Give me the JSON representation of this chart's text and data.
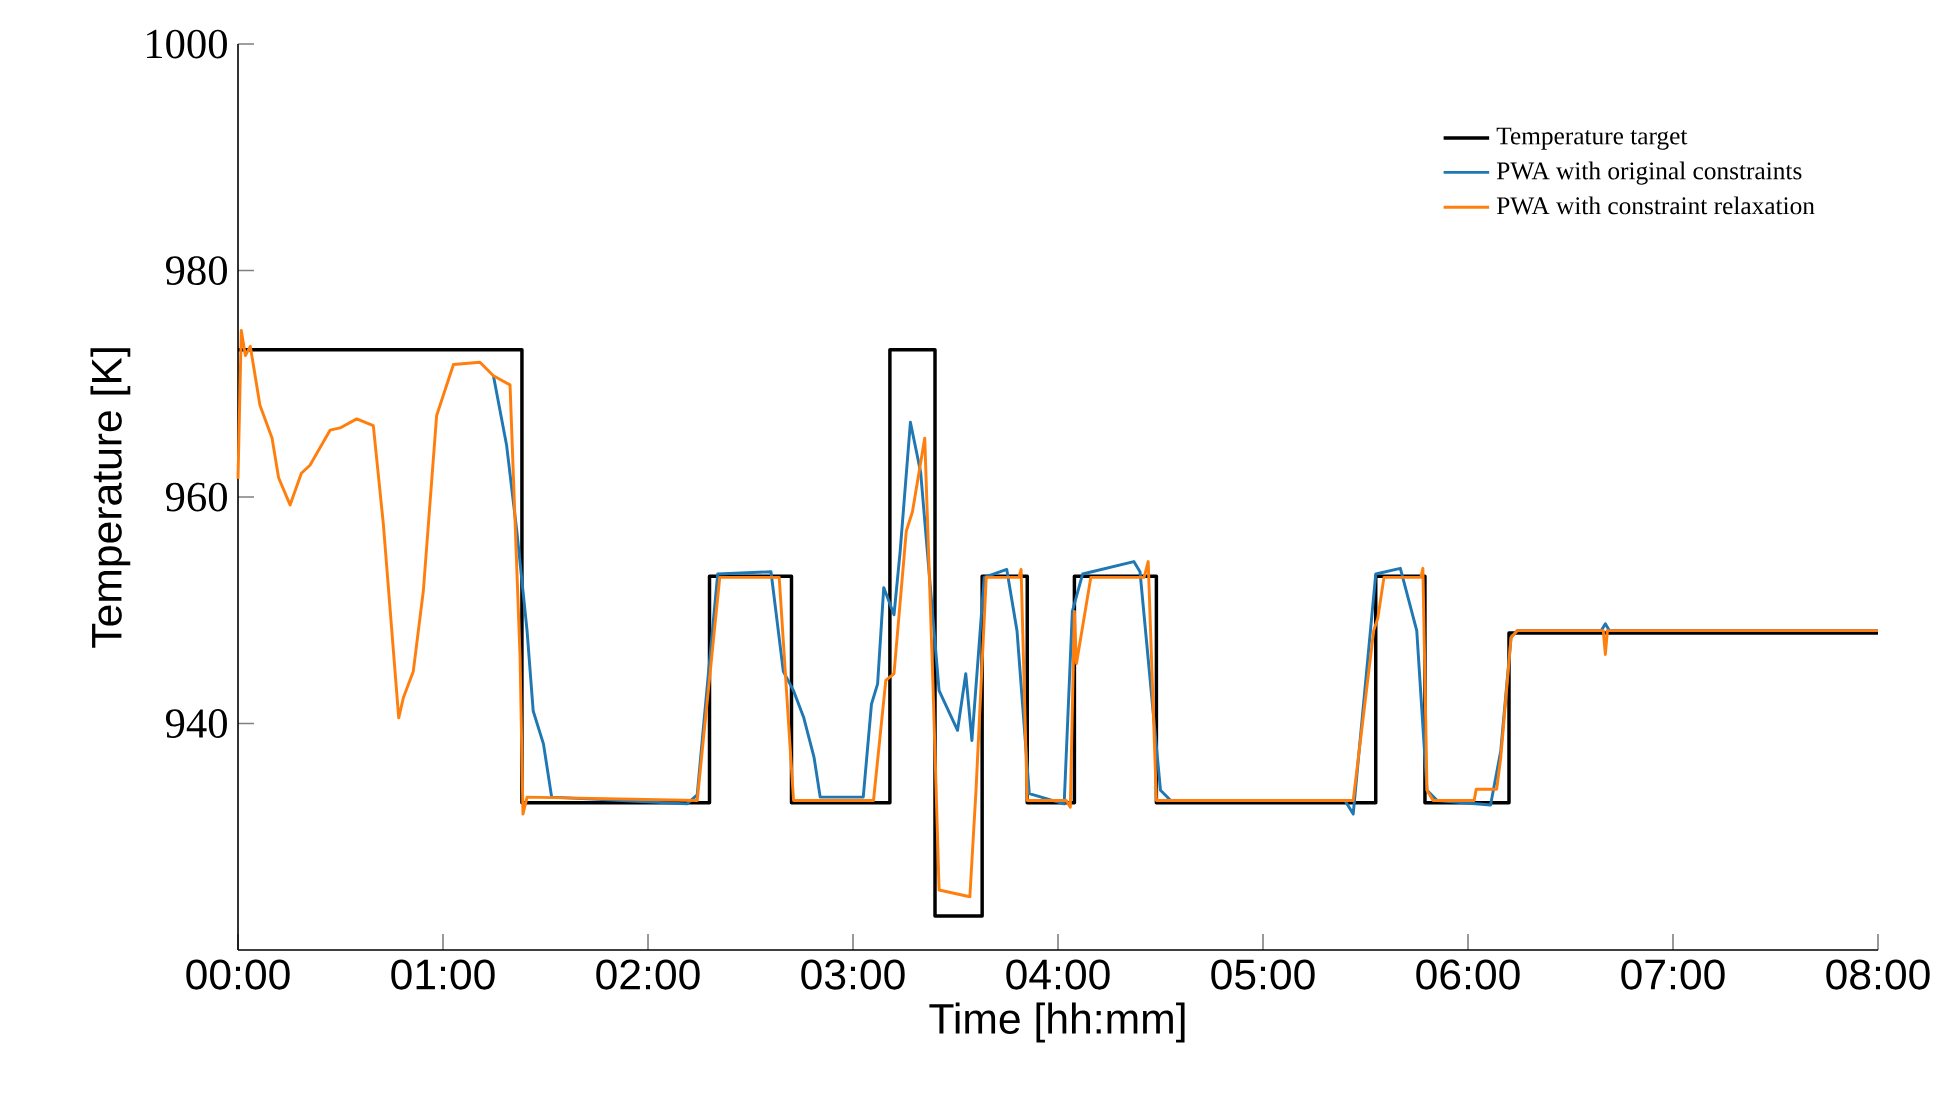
{
  "chart_data": {
    "type": "line",
    "xlabel": "Time [hh:mm]",
    "ylabel": "Temperature [K]",
    "xlim": [
      0,
      8
    ],
    "ylim": [
      920,
      1000
    ],
    "xticks": [
      {
        "value": 0,
        "label": "00:00"
      },
      {
        "value": 1,
        "label": "01:00"
      },
      {
        "value": 2,
        "label": "02:00"
      },
      {
        "value": 3,
        "label": "03:00"
      },
      {
        "value": 4,
        "label": "04:00"
      },
      {
        "value": 5,
        "label": "05:00"
      },
      {
        "value": 6,
        "label": "06:00"
      },
      {
        "value": 7,
        "label": "07:00"
      },
      {
        "value": 8,
        "label": "08:00"
      }
    ],
    "yticks": [
      940,
      960,
      980,
      1000
    ],
    "legend": "top right",
    "grid": false,
    "marker": "none",
    "line_style": "solid",
    "series": [
      {
        "name": "Temperature target",
        "type": "step",
        "color": "#000000",
        "x": [
          0,
          1.385,
          2.3,
          2.7,
          3.18,
          3.4,
          3.63,
          3.85,
          4.08,
          4.48,
          5.55,
          5.79,
          6.2,
          8
        ],
        "values": [
          973,
          933,
          953,
          933,
          973,
          923,
          953,
          933,
          953,
          933,
          953,
          933,
          948,
          948
        ]
      },
      {
        "name": "PWA with original constraints",
        "color": "#1f77b4",
        "x": [
          1.246,
          1.31,
          1.36,
          1.41,
          1.44,
          1.49,
          1.53,
          2.19,
          2.24,
          2.29,
          2.34,
          2.6,
          2.66,
          2.71,
          2.76,
          2.81,
          2.84,
          3.05,
          3.09,
          3.12,
          3.15,
          3.2,
          3.23,
          3.28,
          3.33,
          3.39,
          3.42,
          3.51,
          3.55,
          3.58,
          3.64,
          3.75,
          3.8,
          3.86,
          4.03,
          4.07,
          4.12,
          4.37,
          4.4,
          4.5,
          4.55,
          5.4,
          5.44,
          5.55,
          5.67,
          5.75,
          5.8,
          5.85,
          6.11,
          6.16,
          6.21,
          6.24,
          6.65,
          6.67,
          6.69,
          8
        ],
        "values": [
          970.7,
          964.6,
          957,
          948.2,
          941.1,
          938.2,
          933.5,
          932.9,
          933.7,
          943.5,
          953.2,
          953.4,
          944.6,
          942.9,
          940.5,
          937,
          933.5,
          933.5,
          941.7,
          943.5,
          952,
          949.6,
          955.2,
          966.6,
          962.2,
          949.3,
          942.9,
          939.4,
          944.4,
          938.5,
          952.9,
          953.6,
          948.2,
          933.8,
          932.9,
          949.9,
          953.2,
          954.3,
          953.4,
          934.1,
          933.2,
          933.2,
          932,
          953.2,
          953.7,
          948.2,
          934.1,
          933.2,
          932.8,
          937.6,
          947.6,
          948.2,
          948.2,
          948.8,
          948.2,
          948.2
        ]
      },
      {
        "name": "PWA with constraint relaxation",
        "color": "#ff7f0e",
        "x": [
          0,
          0.016,
          0.036,
          0.06,
          0.107,
          0.166,
          0.198,
          0.254,
          0.309,
          0.351,
          0.449,
          0.498,
          0.579,
          0.66,
          0.709,
          0.784,
          0.807,
          0.855,
          0.904,
          0.969,
          1.051,
          1.18,
          1.246,
          1.327,
          1.376,
          1.39,
          1.41,
          2.24,
          2.35,
          2.64,
          2.71,
          3.1,
          3.16,
          3.2,
          3.26,
          3.29,
          3.35,
          3.39,
          3.42,
          3.57,
          3.6,
          3.65,
          3.81,
          3.82,
          3.85,
          4.04,
          4.06,
          4.08,
          4.09,
          4.16,
          4.42,
          4.44,
          4.48,
          5.44,
          5.54,
          5.56,
          5.59,
          5.77,
          5.78,
          5.8,
          5.83,
          6.03,
          6.04,
          6.14,
          6.16,
          6.21,
          6.24,
          6.66,
          6.67,
          6.68,
          8
        ],
        "values": [
          961.6,
          974.7,
          972.5,
          973.3,
          968.1,
          965.2,
          961.7,
          959.3,
          962.1,
          962.8,
          965.9,
          966.1,
          966.9,
          966.3,
          957.6,
          940.5,
          942.3,
          944.6,
          951.7,
          967.2,
          971.7,
          971.9,
          970.7,
          969.9,
          945.8,
          932,
          933.5,
          933.2,
          952.9,
          952.9,
          933.2,
          933.2,
          943.8,
          944.4,
          957,
          958.7,
          965.2,
          943.5,
          925.3,
          924.7,
          934.1,
          952.9,
          952.9,
          953.6,
          933.2,
          933.2,
          932.6,
          949.9,
          945.3,
          952.9,
          952.9,
          954.3,
          933.2,
          933.2,
          948.2,
          949.3,
          952.9,
          952.9,
          953.7,
          934.1,
          933.2,
          933.2,
          934.2,
          934.2,
          937,
          947.6,
          948.2,
          948.2,
          946.1,
          948.2,
          948.2
        ]
      }
    ]
  }
}
